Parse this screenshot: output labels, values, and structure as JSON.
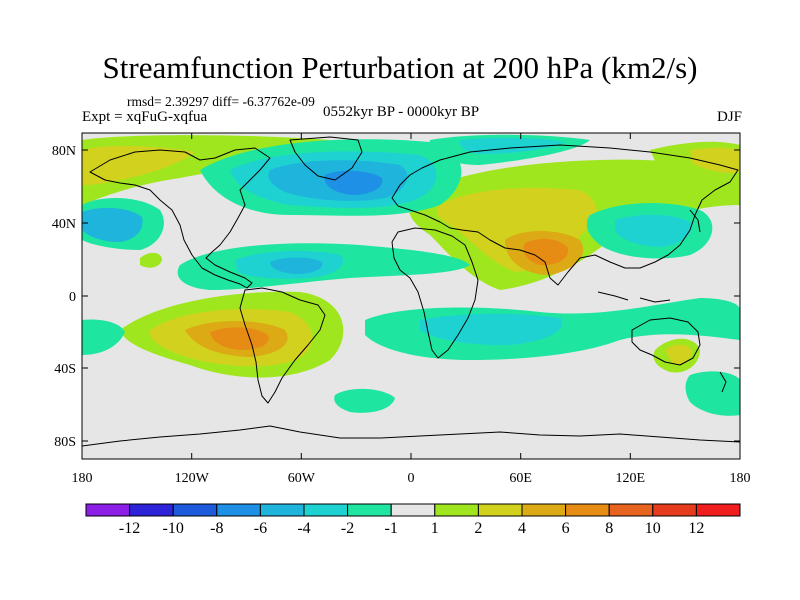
{
  "header": {
    "title": "Streamfunction Perturbation at 200 hPa (km2/s)",
    "stats": "rmsd= 2.39297 diff= -6.37762e-09",
    "experiment": "Expt = xqFuG-xqfua",
    "period": "0552kyr BP - 0000kyr BP",
    "season": "DJF"
  },
  "axes": {
    "lat_labels": [
      "80N",
      "40N",
      "0",
      "40S",
      "80S"
    ],
    "lon_labels": [
      "180",
      "120W",
      "60W",
      "0",
      "60E",
      "120E",
      "180"
    ]
  },
  "colorbar": {
    "labels": [
      "-12",
      "-10",
      "-8",
      "-6",
      "-4",
      "-2",
      "-1",
      "1",
      "2",
      "4",
      "6",
      "8",
      "10",
      "12"
    ],
    "colors": [
      "#8c1ee6",
      "#2d23d8",
      "#1e5adc",
      "#1e91e6",
      "#1eb4dc",
      "#1ed2d2",
      "#1ee6a0",
      "#e6e6e6",
      "#a0e61e",
      "#d2d21e",
      "#dcaa14",
      "#e68c14",
      "#e6641e",
      "#e63c1e",
      "#f01e1e"
    ]
  },
  "colors": {
    "neutral": "#e6e6e6",
    "coast": "#000000"
  }
}
